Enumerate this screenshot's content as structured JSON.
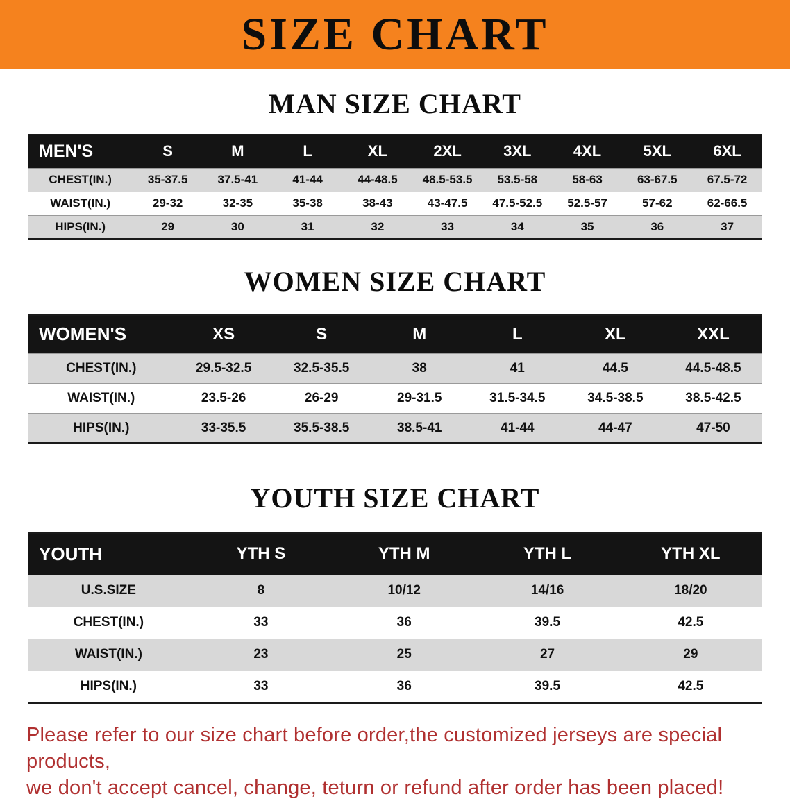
{
  "banner": {
    "title": "SIZE CHART",
    "bg_color": "#F5821E"
  },
  "sections": [
    {
      "id": "men",
      "heading": "MAN SIZE CHART",
      "table": {
        "header": [
          "MEN'S",
          "S",
          "M",
          "L",
          "XL",
          "2XL",
          "3XL",
          "4XL",
          "5XL",
          "6XL"
        ],
        "rows": [
          {
            "label": "CHEST(IN.)",
            "values": [
              "35-37.5",
              "37.5-41",
              "41-44",
              "44-48.5",
              "48.5-53.5",
              "53.5-58",
              "58-63",
              "63-67.5",
              "67.5-72"
            ]
          },
          {
            "label": "WAIST(IN.)",
            "values": [
              "29-32",
              "32-35",
              "35-38",
              "38-43",
              "43-47.5",
              "47.5-52.5",
              "52.5-57",
              "57-62",
              "62-66.5"
            ]
          },
          {
            "label": "HIPS(IN.)",
            "values": [
              "29",
              "30",
              "31",
              "32",
              "33",
              "34",
              "35",
              "36",
              "37"
            ]
          }
        ]
      }
    },
    {
      "id": "women",
      "heading": "WOMEN SIZE CHART",
      "table": {
        "header": [
          "WOMEN'S",
          "XS",
          "S",
          "M",
          "L",
          "XL",
          "XXL"
        ],
        "rows": [
          {
            "label": "CHEST(IN.)",
            "values": [
              "29.5-32.5",
              "32.5-35.5",
              "38",
              "41",
              "44.5",
              "44.5-48.5"
            ]
          },
          {
            "label": "WAIST(IN.)",
            "values": [
              "23.5-26",
              "26-29",
              "29-31.5",
              "31.5-34.5",
              "34.5-38.5",
              "38.5-42.5"
            ]
          },
          {
            "label": "HIPS(IN.)",
            "values": [
              "33-35.5",
              "35.5-38.5",
              "38.5-41",
              "41-44",
              "44-47",
              "47-50"
            ]
          }
        ]
      }
    },
    {
      "id": "youth",
      "heading": "YOUTH SIZE CHART",
      "table": {
        "header": [
          "YOUTH",
          "YTH S",
          "YTH M",
          "YTH L",
          "YTH XL"
        ],
        "rows": [
          {
            "label": "U.S.SIZE",
            "values": [
              "8",
              "10/12",
              "14/16",
              "18/20"
            ]
          },
          {
            "label": "CHEST(IN.)",
            "values": [
              "33",
              "36",
              "39.5",
              "42.5"
            ]
          },
          {
            "label": "WAIST(IN.)",
            "values": [
              "23",
              "25",
              "27",
              "29"
            ]
          },
          {
            "label": "HIPS(IN.)",
            "values": [
              "33",
              "36",
              "39.5",
              "42.5"
            ]
          }
        ]
      }
    }
  ],
  "disclaimer": {
    "line1": "Please refer to our size chart before order,the customized jerseys are special products,",
    "line2": "we don't accept cancel, change, teturn or refund after order has been placed!",
    "text_color": "#B03030"
  },
  "colors": {
    "banner_bg": "#F5821E",
    "table_header_bg": "#141414",
    "shaded_row_bg": "#D8D8D8",
    "heading_text": "#0D0D0D"
  }
}
